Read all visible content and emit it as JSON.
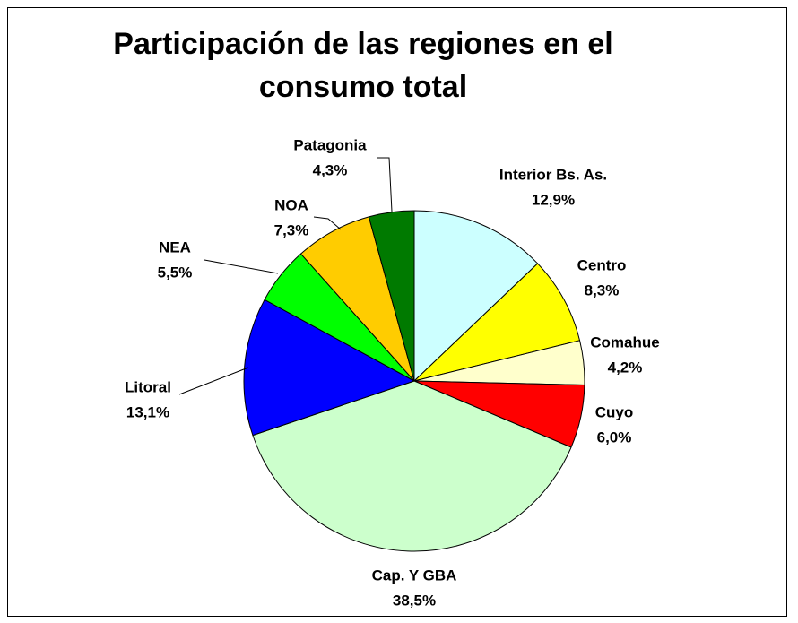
{
  "chart_data": {
    "type": "pie",
    "title": "Participación de las regiones en el consumo total",
    "categories": [
      "Interior Bs. As.",
      "Centro",
      "Comahue",
      "Cuyo",
      "Cap. Y GBA",
      "Litoral",
      "NEA",
      "NOA",
      "Patagonia"
    ],
    "values": [
      12.9,
      8.3,
      4.2,
      6.0,
      38.5,
      13.1,
      5.5,
      7.3,
      4.3
    ],
    "value_labels": [
      "12,9%",
      "8,3%",
      "4,2%",
      "6,0%",
      "38,5%",
      "13,1%",
      "5,5%",
      "7,3%",
      "4,3%"
    ],
    "colors": [
      "#ccffff",
      "#ffff00",
      "#ffffcc",
      "#ff0000",
      "#ccffcc",
      "#0000ff",
      "#00ff00",
      "#ffcc00",
      "#007a00"
    ]
  }
}
